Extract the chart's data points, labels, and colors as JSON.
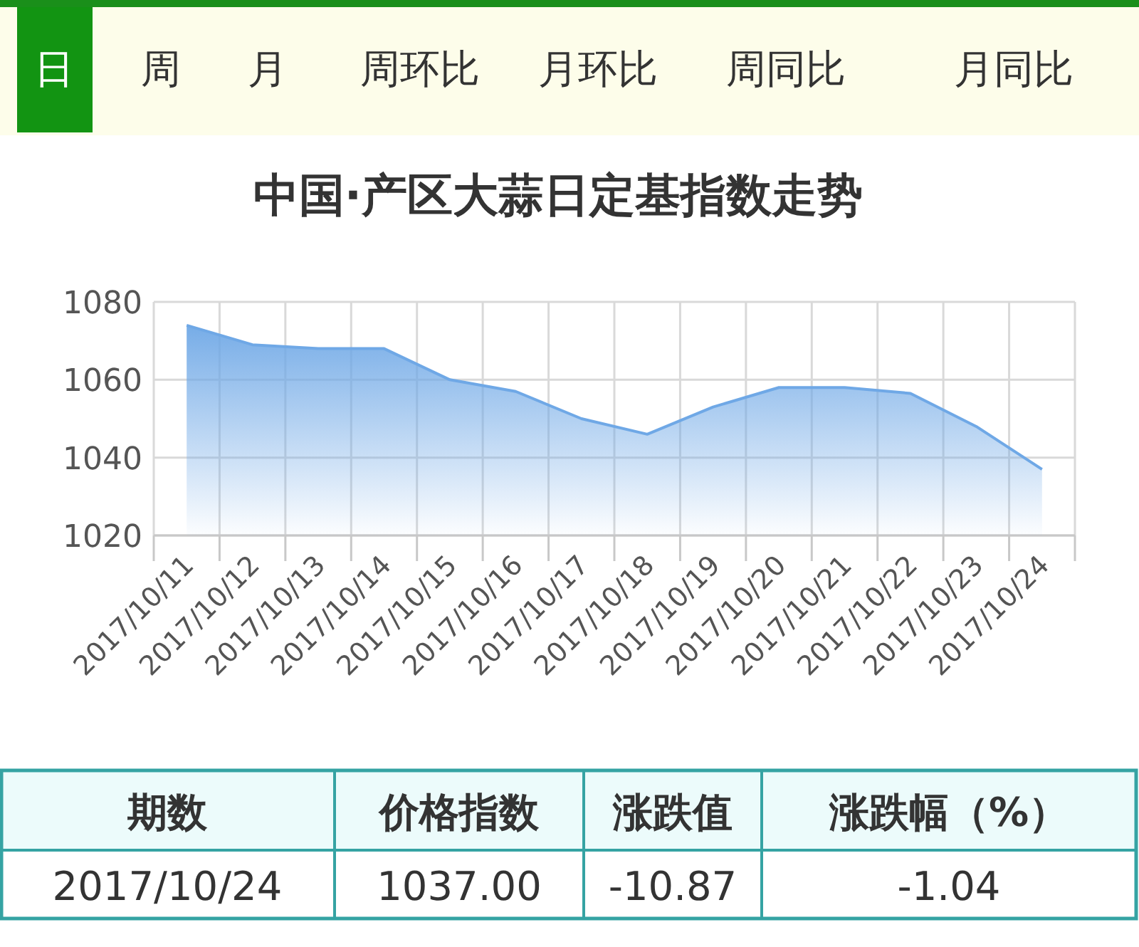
{
  "chart_data": {
    "type": "area",
    "title": "中国·产区大蒜日定基指数走势",
    "categories": [
      "2017/10/11",
      "2017/10/12",
      "2017/10/13",
      "2017/10/14",
      "2017/10/15",
      "2017/10/16",
      "2017/10/17",
      "2017/10/18",
      "2017/10/19",
      "2017/10/20",
      "2017/10/21",
      "2017/10/22",
      "2017/10/23",
      "2017/10/24"
    ],
    "series": [
      {
        "color": "#6fa8e6",
        "values": [
          1074,
          1069,
          1068,
          1068,
          1060,
          1057,
          1050,
          1046,
          1053,
          1058,
          1058,
          1056.5,
          1048,
          1037
        ]
      }
    ],
    "ylim": [
      1020,
      1080
    ],
    "yticks": [
      1020,
      1040,
      1060,
      1080
    ],
    "grid": true,
    "annotations": [
      "日",
      "周",
      "月",
      "周环比",
      "月环比",
      "周同比",
      "月同比",
      "期数",
      "价格指数",
      "涨跌值",
      "涨跌幅（%）",
      "2017/10/24",
      "1037.00",
      "-10.87",
      "-1.04"
    ]
  }
}
